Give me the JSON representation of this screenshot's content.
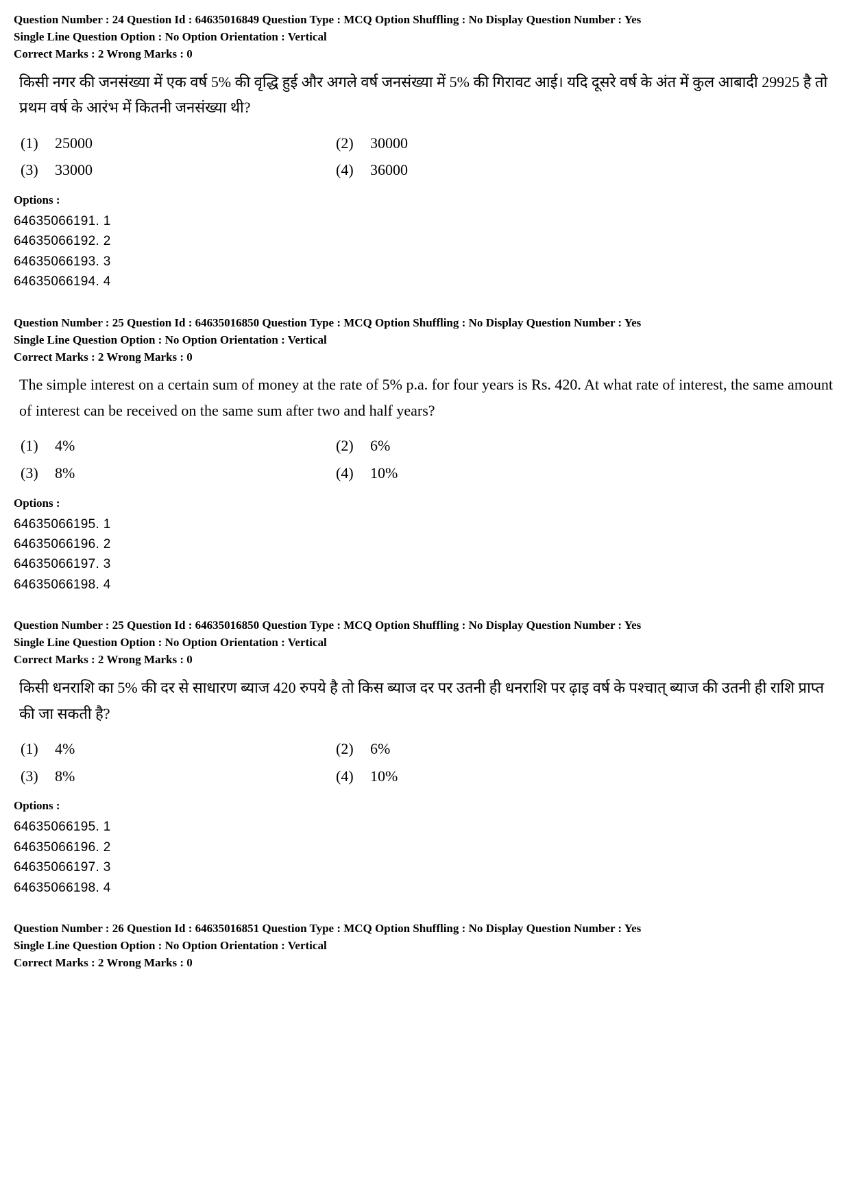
{
  "questions": [
    {
      "meta_line1": "Question Number : 24  Question Id : 64635016849  Question Type : MCQ  Option Shuffling : No  Display Question Number : Yes",
      "meta_line2": "Single Line Question Option : No  Option Orientation : Vertical",
      "marks": "Correct Marks : 2  Wrong Marks : 0",
      "text": "किसी नगर की जनसंख्या में एक वर्ष 5% की वृद्धि हुई और अगले वर्ष जनसंख्या में 5% की गिरावट आई। यदि दूसरे वर्ष के अंत में कुल आबादी 29925 है तो प्रथम वर्ष के आरंभ में कितनी जनसंख्या थी?",
      "choices": [
        {
          "n": "(1)",
          "v": "25000"
        },
        {
          "n": "(2)",
          "v": "30000"
        },
        {
          "n": "(3)",
          "v": "33000"
        },
        {
          "n": "(4)",
          "v": "36000"
        }
      ],
      "options_heading": "Options :",
      "options": [
        "64635066191. 1",
        "64635066192. 2",
        "64635066193. 3",
        "64635066194. 4"
      ]
    },
    {
      "meta_line1": "Question Number : 25  Question Id : 64635016850  Question Type : MCQ  Option Shuffling : No  Display Question Number : Yes",
      "meta_line2": "Single Line Question Option : No  Option Orientation : Vertical",
      "marks": "Correct Marks : 2  Wrong Marks : 0",
      "text": "The simple interest on a certain sum of money at the rate of 5% p.a. for four years is Rs. 420. At what rate of interest, the same amount of interest can be received on the same sum after two and half years?",
      "choices": [
        {
          "n": "(1)",
          "v": "4%"
        },
        {
          "n": "(2)",
          "v": "6%"
        },
        {
          "n": "(3)",
          "v": "8%"
        },
        {
          "n": "(4)",
          "v": "10%"
        }
      ],
      "options_heading": "Options :",
      "options": [
        "64635066195. 1",
        "64635066196. 2",
        "64635066197. 3",
        "64635066198. 4"
      ]
    },
    {
      "meta_line1": "Question Number : 25  Question Id : 64635016850  Question Type : MCQ  Option Shuffling : No  Display Question Number : Yes",
      "meta_line2": "Single Line Question Option : No  Option Orientation : Vertical",
      "marks": "Correct Marks : 2  Wrong Marks : 0",
      "text": "किसी धनराशि का 5% की दर से साधारण ब्याज 420 रुपये है तो किस ब्याज दर पर उतनी ही धनराशि पर ढ़ाइ वर्ष के पश्चात् ब्याज की उतनी ही राशि प्राप्त की जा सकती है?",
      "choices": [
        {
          "n": "(1)",
          "v": "4%"
        },
        {
          "n": "(2)",
          "v": "6%"
        },
        {
          "n": "(3)",
          "v": "8%"
        },
        {
          "n": "(4)",
          "v": "10%"
        }
      ],
      "options_heading": "Options :",
      "options": [
        "64635066195. 1",
        "64635066196. 2",
        "64635066197. 3",
        "64635066198. 4"
      ]
    },
    {
      "meta_line1": "Question Number : 26  Question Id : 64635016851  Question Type : MCQ  Option Shuffling : No  Display Question Number : Yes",
      "meta_line2": "Single Line Question Option : No  Option Orientation : Vertical",
      "marks": "Correct Marks : 2  Wrong Marks : 0",
      "text": "",
      "choices": [],
      "options_heading": "",
      "options": []
    }
  ]
}
